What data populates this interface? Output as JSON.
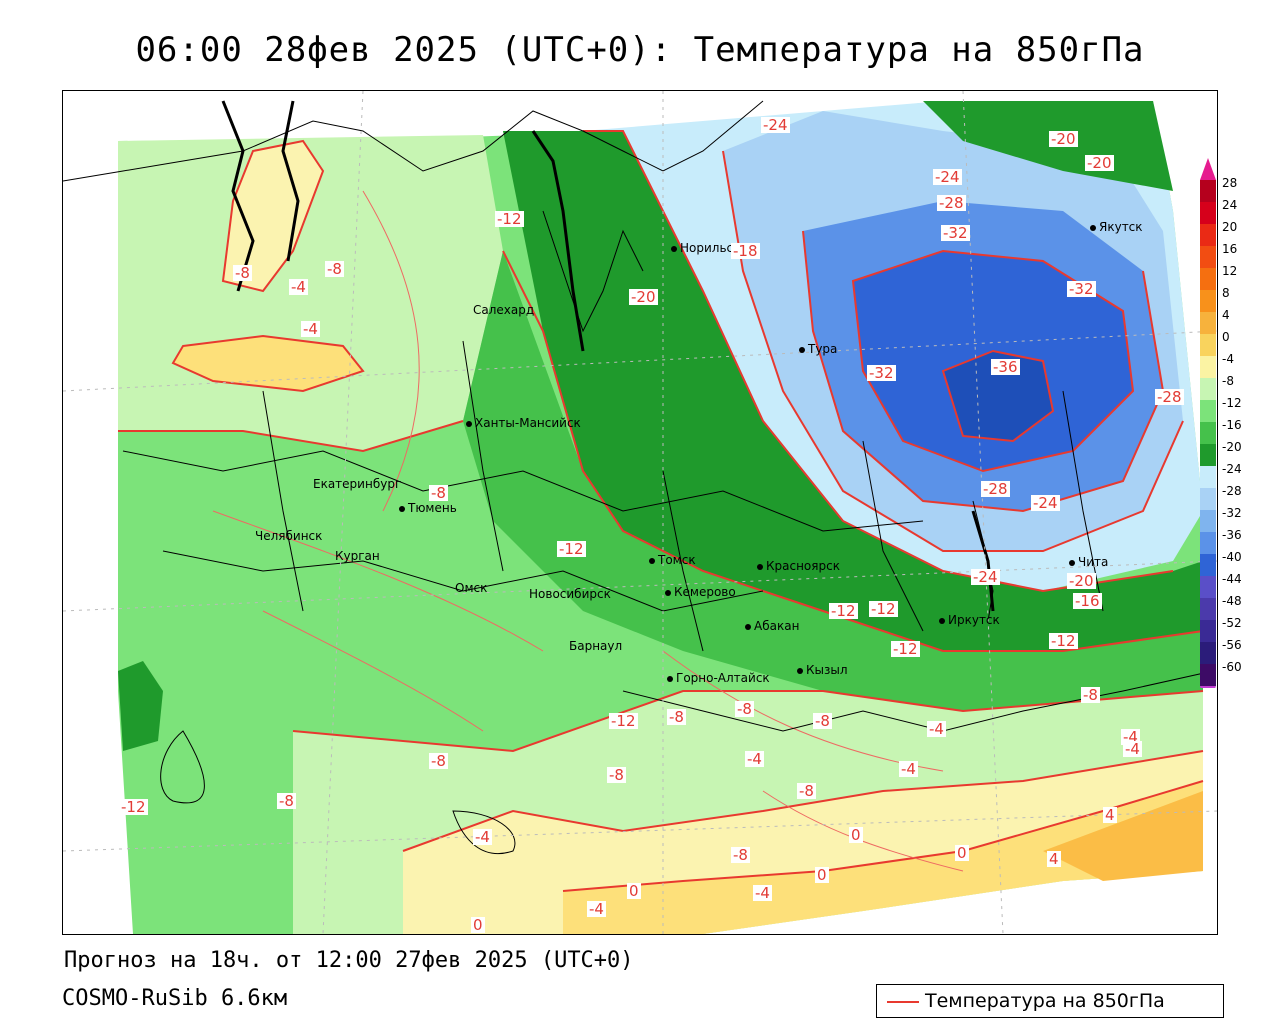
{
  "header": {
    "title": "06:00 28фев 2025 (UTC+0): Температура на 850гПа"
  },
  "footer": {
    "forecast": "Прогноз на 18ч. от 12:00 27фев 2025 (UTC+0)",
    "model": "COSMO-RuSib 6.6км",
    "legend_label": "Температура на 850гПа"
  },
  "colors": {
    "isoline": "#e8392f",
    "very_cold": "#2f64d6",
    "cold": "#5b92e8",
    "cool": "#a9d2f5",
    "pale": "#c8ecfb",
    "dark_green": "#1f9a2c",
    "green": "#45c14b",
    "light_green": "#7ce37a",
    "pale_green": "#c7f5b3",
    "pale_yellow": "#fbf3b0",
    "yellow": "#fde07a",
    "orange": "#fbbd46"
  },
  "colorbar": {
    "labels": [
      "28",
      "24",
      "20",
      "16",
      "12",
      "8",
      "4",
      "0",
      "-4",
      "-8",
      "-12",
      "-16",
      "-20",
      "-24",
      "-28",
      "-32",
      "-36",
      "-40",
      "-44",
      "-48",
      "-52",
      "-56",
      "-60"
    ],
    "colors": [
      "#b5001d",
      "#d6001b",
      "#ea2a15",
      "#f24d12",
      "#f56f10",
      "#f8911b",
      "#f7b23c",
      "#f9d35d",
      "#fbf3a3",
      "#c7f5b3",
      "#7ce37a",
      "#45c14b",
      "#1f9a2c",
      "#c8ecfb",
      "#a9d2f5",
      "#7fb4ee",
      "#5b92e8",
      "#2f64d6",
      "#5a4fc8",
      "#4b3aab",
      "#3a2a95",
      "#2b1c7a",
      "#3d0b66"
    ]
  },
  "cities": [
    {
      "name": "Норильск"
    },
    {
      "name": "Якутск"
    },
    {
      "name": "Салехард"
    },
    {
      "name": "Тура"
    },
    {
      "name": "Ханты-Мансийск"
    },
    {
      "name": "Екатеринбург"
    },
    {
      "name": "Тюмень"
    },
    {
      "name": "Челябинск"
    },
    {
      "name": "Курган"
    },
    {
      "name": "Омск"
    },
    {
      "name": "Новосибирск"
    },
    {
      "name": "Томск"
    },
    {
      "name": "Кемерово"
    },
    {
      "name": "Красноярск"
    },
    {
      "name": "Барнаул"
    },
    {
      "name": "Абакан"
    },
    {
      "name": "Иркутск"
    },
    {
      "name": "Горно-Алтайск"
    },
    {
      "name": "Кызыл"
    },
    {
      "name": "Чита"
    }
  ],
  "isolines": [
    "-24",
    "-20",
    "-20",
    "-24",
    "-28",
    "-32",
    "-32",
    "-12",
    "-18",
    "-20",
    "-8",
    "-8",
    "-4",
    "-4",
    "-32",
    "-36",
    "-28",
    "-28",
    "-24",
    "-8",
    "-12",
    "-24",
    "-20",
    "-16",
    "-12",
    "-12",
    "-12",
    "-12",
    "-8",
    "-8",
    "-12",
    "-8",
    "-8",
    "-4",
    "-8",
    "-4",
    "-4",
    "-8",
    "-8",
    "-12",
    "-8",
    "-4",
    "-8",
    "-4",
    "0",
    "4",
    "0",
    "-8",
    "0",
    "4",
    "-4",
    "-4",
    "0",
    "0",
    "-4"
  ]
}
